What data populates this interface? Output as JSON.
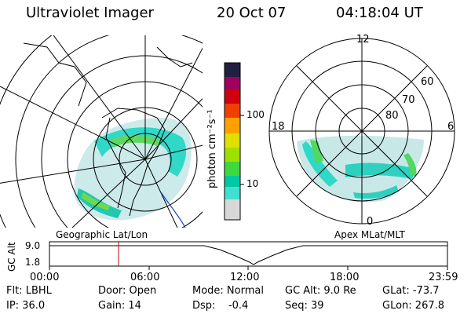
{
  "header": {
    "instrument": "Ultraviolet Imager",
    "date": "20 Oct 07",
    "time": "04:18:04 UT"
  },
  "left_map": {
    "label": "Geographic Lat/Lon"
  },
  "colorbar": {
    "unit_label": "photon cm⁻²s⁻¹",
    "tick_100": "100",
    "tick_10": "10",
    "colors": [
      "#d8d8d8",
      "#40e0d0",
      "#00c8a0",
      "#80e000",
      "#d0e000",
      "#ffa000",
      "#ff6000",
      "#e00000",
      "#b00040",
      "#400060",
      "#000040"
    ]
  },
  "right_map": {
    "label": "Apex MLat/MLT",
    "mlt_labels": {
      "top": "12",
      "left": "18",
      "right": "6",
      "bottom": "0"
    },
    "lat_labels": [
      "60",
      "70",
      "80"
    ]
  },
  "altitude_plot": {
    "ylabel": "GC Alt",
    "y_ticks": [
      "9.0",
      "1.8"
    ],
    "x_ticks": [
      "00:00",
      "06:00",
      "12:00",
      "18:00",
      "23:59"
    ],
    "marker_time_hours": 4.3
  },
  "info": {
    "flt": "Flt: LBHL",
    "ip": "IP: 36.0",
    "door": "Door: Open",
    "gain": "Gain: 14",
    "mode": "Mode: Normal",
    "dsp": "Dsp:    -0.4",
    "gcalt": "GC Alt: 9.0 Re",
    "seq": "Seq: 39",
    "glat": "GLat: -73.7",
    "glon": "GLon: 267.8"
  }
}
